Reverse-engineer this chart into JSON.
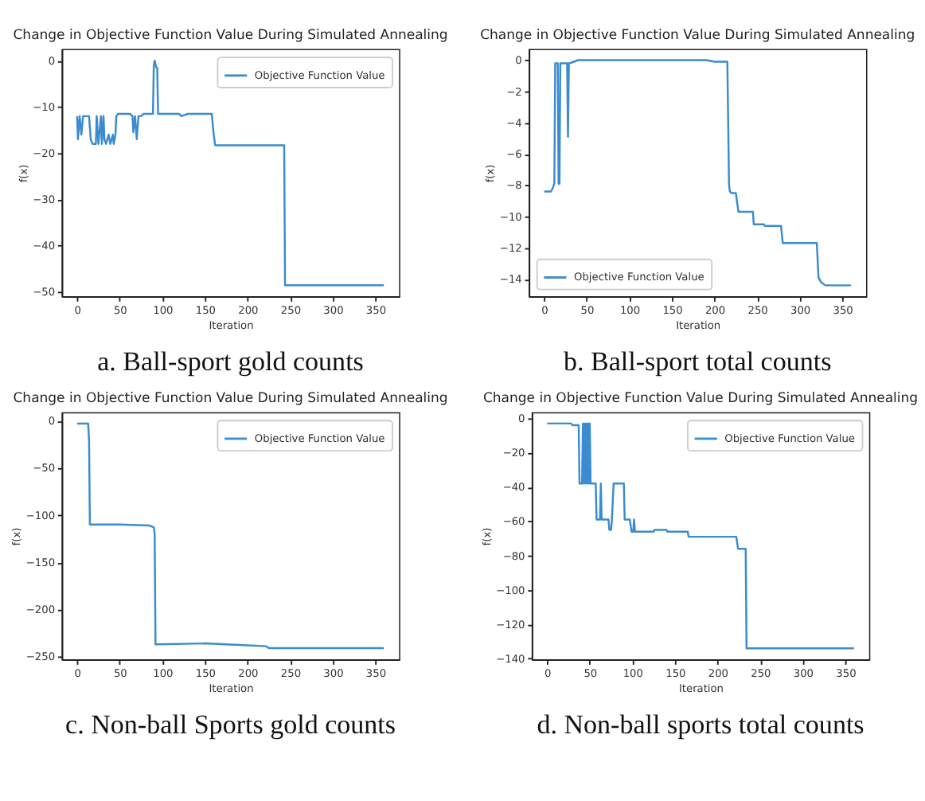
{
  "chart_data": [
    {
      "type": "line",
      "title": "Change in Objective Function Value During Simulated Annealing",
      "xlabel": "Iteration",
      "ylabel": "f(x)",
      "legend": "top right",
      "annotations": [
        "a. Ball-sport gold counts"
      ],
      "xlim": [
        -18,
        378
      ],
      "ylim": [
        -51,
        2.5
      ],
      "xticks": [
        0,
        50,
        100,
        150,
        200,
        250,
        300,
        350
      ],
      "yticks": [
        0,
        -10,
        -20,
        -30,
        -40,
        -50
      ],
      "series": [
        {
          "name": "Objective Function Value",
          "color": "#3b8bd0",
          "x": [
            0,
            1,
            3,
            5,
            7,
            14,
            16,
            18,
            22,
            23,
            25,
            28,
            29,
            31,
            32,
            34,
            37,
            39,
            42,
            43,
            45,
            46,
            48,
            62,
            65,
            66,
            68,
            70,
            72,
            75,
            78,
            89,
            90,
            91,
            93,
            94,
            95,
            120,
            122,
            130,
            158,
            160,
            162,
            243,
            244,
            360
          ],
          "values": [
            -12,
            -17,
            -12,
            -16,
            -12,
            -12,
            -17,
            -18,
            -18,
            -12,
            -18,
            -12,
            -18,
            -12,
            -17,
            -18,
            -16,
            -18,
            -16,
            -18,
            -16,
            -12,
            -11.5,
            -11.5,
            -12,
            -15.5,
            -12,
            -17,
            -12,
            -12,
            -11.5,
            -11.5,
            -1,
            0,
            -1.5,
            -1.5,
            -11.5,
            -11.5,
            -12,
            -11.5,
            -11.5,
            -15.5,
            -18.3,
            -18.3,
            -48.6,
            -48.6
          ]
        }
      ]
    },
    {
      "type": "line",
      "title": "Change in Objective Function Value During Simulated Annealing",
      "xlabel": "Iteration",
      "ylabel": "f(x)",
      "legend": "bottom left",
      "annotations": [
        "b. Ball-sport total counts"
      ],
      "xlim": [
        -18,
        378
      ],
      "ylim": [
        -15.1,
        0.7
      ],
      "xticks": [
        0,
        50,
        100,
        150,
        200,
        250,
        300,
        350
      ],
      "yticks": [
        0,
        -2,
        -4,
        -6,
        -8,
        -10,
        -12,
        -14
      ],
      "series": [
        {
          "name": "Objective Function Value",
          "color": "#3b8bd0",
          "x": [
            0,
            8,
            10,
            12,
            13,
            14,
            16,
            17,
            18,
            19,
            27,
            28,
            29,
            30,
            35,
            40,
            190,
            200,
            215,
            217,
            218,
            220,
            225,
            228,
            245,
            246,
            258,
            259,
            278,
            280,
            320,
            322,
            325,
            330,
            360
          ],
          "values": [
            -8.4,
            -8.4,
            -8.2,
            -7.9,
            -0.2,
            -0.2,
            -0.2,
            -7.9,
            -7.9,
            -0.2,
            -0.2,
            -4.9,
            -0.2,
            -0.2,
            -0.1,
            0,
            0,
            -0.1,
            -0.1,
            -8,
            -8.4,
            -8.5,
            -8.5,
            -9.7,
            -9.7,
            -10.5,
            -10.5,
            -10.6,
            -10.6,
            -11.7,
            -11.7,
            -13.9,
            -14.2,
            -14.4,
            -14.4
          ]
        }
      ]
    },
    {
      "type": "line",
      "title": "Change in Objective Function Value During Simulated Annealing",
      "xlabel": "Iteration",
      "ylabel": "f(x)",
      "legend": "top right",
      "annotations": [
        "c. Non-ball Sports gold counts"
      ],
      "xlim": [
        -18,
        378
      ],
      "ylim": [
        -253,
        9
      ],
      "xticks": [
        0,
        50,
        100,
        150,
        200,
        250,
        300,
        350
      ],
      "yticks": [
        0,
        -50,
        -100,
        -150,
        -200,
        -250
      ],
      "series": [
        {
          "name": "Objective Function Value",
          "color": "#3b8bd0",
          "x": [
            0,
            13,
            14,
            15,
            50,
            85,
            90,
            91,
            92,
            93,
            150,
            200,
            222,
            225,
            360
          ],
          "values": [
            -3,
            -3,
            -20,
            -110,
            -110,
            -111,
            -113,
            -120,
            -237,
            -237,
            -236,
            -238,
            -239,
            -241,
            -241
          ]
        }
      ]
    },
    {
      "type": "line",
      "title": "Change in Objective Function Value During Simulated Annealing",
      "xlabel": "Iteration",
      "ylabel": "f(x)",
      "legend": "top right",
      "annotations": [
        "d. Non-ball sports total counts"
      ],
      "xlim": [
        -18,
        378
      ],
      "ylim": [
        -140.5,
        3.5
      ],
      "xticks": [
        0,
        50,
        100,
        150,
        200,
        250,
        300,
        350
      ],
      "yticks": [
        0,
        -20,
        -40,
        -60,
        -80,
        -100,
        -120,
        -140
      ],
      "series": [
        {
          "name": "Objective Function Value",
          "color": "#3b8bd0",
          "x": [
            0,
            28,
            30,
            37,
            38,
            41,
            42,
            43,
            44,
            45,
            46,
            47,
            48,
            49,
            50,
            51,
            52,
            57,
            58,
            62,
            63,
            64,
            65,
            72,
            73,
            75,
            76,
            78,
            90,
            91,
            92,
            97,
            99,
            101,
            102,
            103,
            104,
            125,
            126,
            140,
            141,
            165,
            166,
            222,
            224,
            233,
            234,
            360
          ],
          "values": [
            -3,
            -3,
            -4,
            -4,
            -38,
            -38,
            -3,
            -38,
            -3,
            -38,
            -3,
            -38,
            -3,
            -38,
            -3,
            -38,
            -38,
            -38,
            -59,
            -59,
            -38,
            -59,
            -59,
            -59,
            -65,
            -65,
            -59,
            -38,
            -38,
            -59,
            -59,
            -59,
            -66,
            -66,
            -59,
            -66,
            -66,
            -66,
            -65,
            -65,
            -66,
            -66,
            -69,
            -69,
            -76,
            -76,
            -134,
            -134
          ]
        }
      ]
    }
  ]
}
